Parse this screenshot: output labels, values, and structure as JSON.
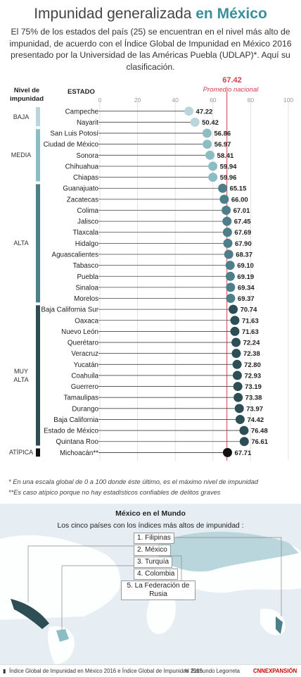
{
  "header": {
    "title_main": "Impunidad generalizada",
    "title_highlight": "en México",
    "intro": "El 75% de los estados del país (25) se encuentran en el nivel más alto de impunidad, de acuerdo con el Índice Global de Impunidad en México 2016 presentado por la Universidad de las Américas Puebla (UDLAP)*. Aquí su clasificación."
  },
  "labels": {
    "nivel_header": "Nivel de impunidad",
    "estado_header": "ESTADO",
    "average_value": "67.42",
    "average_label": "Promedio nacional"
  },
  "levels": [
    {
      "name": "BAJA",
      "color": "#b9d6dc"
    },
    {
      "name": "MEDIA",
      "color": "#8cbcc4"
    },
    {
      "name": "ALTA",
      "color": "#4d7f8a"
    },
    {
      "name": "MUY ALTA",
      "color": "#2e4e55"
    },
    {
      "name": "ATÍPICA",
      "color": "#111111"
    }
  ],
  "chart_data": {
    "type": "scatter",
    "xlim": [
      0,
      100
    ],
    "x_ticks": [
      0,
      20,
      40,
      60,
      80,
      100
    ],
    "average": 67.42,
    "categories": [
      "Campeche",
      "Nayarit",
      "San Luis Potosí",
      "Ciudad de México",
      "Sonora",
      "Chihuahua",
      "Chiapas",
      "Guanajuato",
      "Zacatecas",
      "Colima",
      "Jalisco",
      "Tlaxcala",
      "Hidalgo",
      "Aguascalientes",
      "Tabasco",
      "Puebla",
      "Sinaloa",
      "Morelos",
      "Baja California Sur",
      "Oaxaca",
      "Nuevo León",
      "Querétaro",
      "Veracruz",
      "Yucatán",
      "Coahuila",
      "Guerrero",
      "Tamaulipas",
      "Durango",
      "Baja California",
      "Estado de México",
      "Quintana Roo",
      "Michoacán**"
    ],
    "values": [
      47.22,
      50.42,
      56.86,
      56.97,
      58.41,
      59.94,
      59.96,
      65.15,
      66.0,
      67.01,
      67.45,
      67.69,
      67.9,
      68.37,
      69.1,
      69.19,
      69.34,
      69.37,
      70.74,
      71.63,
      71.63,
      72.24,
      72.38,
      72.8,
      72.93,
      73.19,
      73.38,
      73.97,
      74.42,
      76.48,
      76.61,
      67.71
    ],
    "value_labels": [
      "47.22",
      "50.42",
      "56.86",
      "56.97",
      "58.41",
      "59.94",
      "59.96",
      "65.15",
      "66.00",
      "67.01",
      "67.45",
      "67.69",
      "67.90",
      "68.37",
      "69.10",
      "69.19",
      "69.34",
      "69.37",
      "70.74",
      "71.63",
      "71.63",
      "72.24",
      "72.38",
      "72.80",
      "72.93",
      "73.19",
      "73.38",
      "73.97",
      "74.42",
      "76.48",
      "76.61",
      "67.71"
    ],
    "level_index": [
      0,
      0,
      1,
      1,
      1,
      1,
      1,
      2,
      2,
      2,
      2,
      2,
      2,
      2,
      2,
      2,
      2,
      2,
      3,
      3,
      3,
      3,
      3,
      3,
      3,
      3,
      3,
      3,
      3,
      3,
      3,
      4
    ]
  },
  "footnotes": [
    "* En una escala global de 0 a 100 donde éste último, es el máximo nivel de impunidad",
    "**Es caso atípico porque no hay estadísticos confiables de delitos graves"
  ],
  "map": {
    "title": "México en el Mundo",
    "subtitle": "Los cinco países con los índices más altos de impunidad :",
    "countries": [
      "1. Filipinas",
      "2. México",
      "3. Turquía",
      "4. Colombia",
      "5. La Federación de Rusia"
    ]
  },
  "footer": {
    "source": "Índice Global de Impunidad en México 2016 e Índice Global de Impunidad 2015",
    "author": "Edmundo Legorreta",
    "brand": "CNNEXPANSIÓN"
  }
}
